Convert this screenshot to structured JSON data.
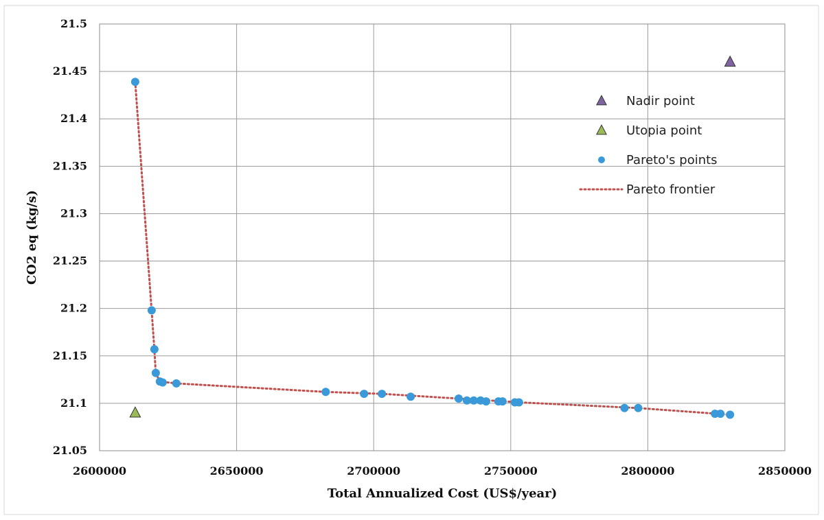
{
  "chart_data": {
    "type": "scatter",
    "xlabel": "Total Annualized Cost (US$/year)",
    "ylabel": "CO2 eq (kg/s)",
    "xlim": [
      2600000,
      2850000
    ],
    "ylim": [
      21.05,
      21.5
    ],
    "x_ticks": [
      "2600000",
      "2650000",
      "2700000",
      "2750000",
      "2800000",
      "2850000"
    ],
    "y_ticks": [
      "21.05",
      "21.1",
      "21.15",
      "21.2",
      "21.25",
      "21.3",
      "21.35",
      "21.4",
      "21.45",
      "21.5"
    ],
    "grid": true,
    "legend_position": "top-right",
    "series": [
      {
        "name": "Nadir point",
        "marker": "triangle",
        "color": "#8064a2",
        "points": [
          [
            2830000,
            21.46
          ]
        ]
      },
      {
        "name": "Utopia point",
        "marker": "triangle",
        "color": "#9bbb59",
        "points": [
          [
            2613000,
            21.09
          ]
        ]
      },
      {
        "name": "Pareto's points",
        "marker": "circle",
        "color": "#3a9ad9",
        "points": [
          [
            2613000,
            21.439
          ],
          [
            2619000,
            21.198
          ],
          [
            2620000,
            21.157
          ],
          [
            2620500,
            21.132
          ],
          [
            2622000,
            21.123
          ],
          [
            2623000,
            21.122
          ],
          [
            2628000,
            21.121
          ],
          [
            2682500,
            21.112
          ],
          [
            2696500,
            21.11
          ],
          [
            2703000,
            21.11
          ],
          [
            2713500,
            21.107
          ],
          [
            2731000,
            21.105
          ],
          [
            2734000,
            21.103
          ],
          [
            2736500,
            21.103
          ],
          [
            2739000,
            21.103
          ],
          [
            2741000,
            21.102
          ],
          [
            2745500,
            21.102
          ],
          [
            2747000,
            21.102
          ],
          [
            2751500,
            21.101
          ],
          [
            2753000,
            21.101
          ],
          [
            2791500,
            21.095
          ],
          [
            2796500,
            21.095
          ],
          [
            2824500,
            21.089
          ],
          [
            2826500,
            21.089
          ],
          [
            2830000,
            21.088
          ]
        ]
      },
      {
        "name": "Pareto frontier",
        "marker": "dotted-line",
        "color": "#c0504d",
        "points": [
          [
            2613000,
            21.439
          ],
          [
            2619000,
            21.198
          ],
          [
            2620000,
            21.157
          ],
          [
            2620500,
            21.132
          ],
          [
            2622000,
            21.123
          ],
          [
            2628000,
            21.121
          ],
          [
            2682500,
            21.112
          ],
          [
            2703000,
            21.11
          ],
          [
            2731000,
            21.105
          ],
          [
            2753000,
            21.101
          ],
          [
            2796500,
            21.095
          ],
          [
            2830000,
            21.088
          ]
        ]
      }
    ]
  }
}
